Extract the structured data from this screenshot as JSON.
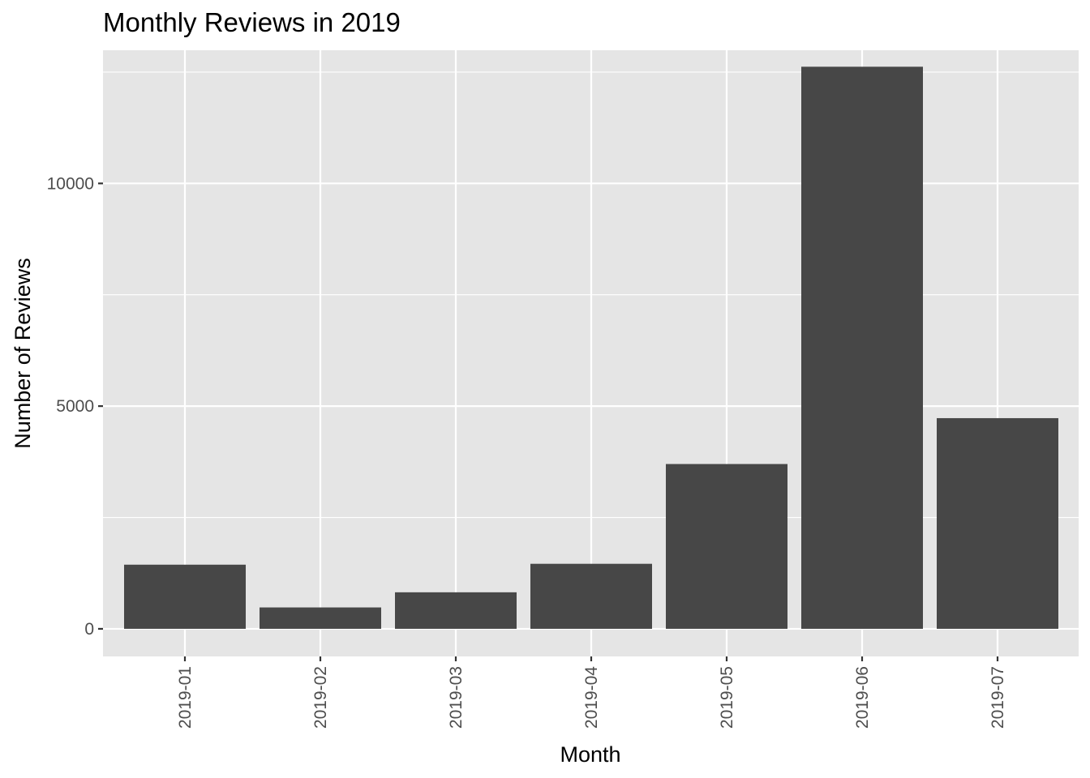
{
  "chart_data": {
    "type": "bar",
    "title": "Monthly Reviews in 2019",
    "xlabel": "Month",
    "ylabel": "Number of Reviews",
    "categories": [
      "2019-01",
      "2019-02",
      "2019-03",
      "2019-04",
      "2019-05",
      "2019-06",
      "2019-07"
    ],
    "values": [
      1440,
      480,
      820,
      1460,
      3700,
      12620,
      4730
    ],
    "ylim": [
      -620,
      12990
    ],
    "yticks": [
      0,
      5000,
      10000
    ],
    "yticks_minor": [
      2500,
      7500,
      12500
    ],
    "ytick_labels": [
      "0",
      "5000",
      "10000"
    ],
    "grid": true,
    "legend": "none",
    "colors": {
      "bar": "#474747",
      "panel": "#e5e5e5",
      "grid": "#ffffff"
    }
  }
}
